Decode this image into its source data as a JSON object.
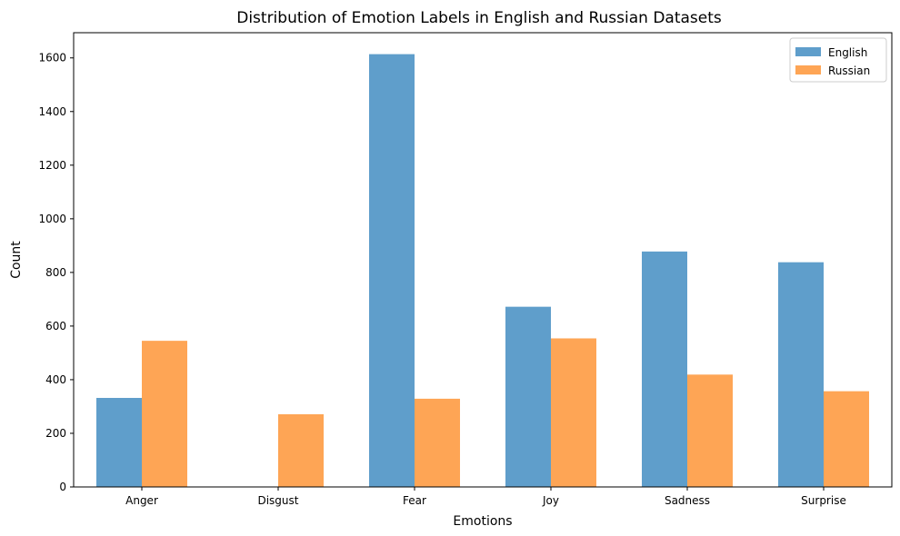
{
  "chart_data": {
    "type": "bar",
    "title": "Distribution of Emotion Labels in English and Russian Datasets",
    "xlabel": "Emotions",
    "ylabel": "Count",
    "categories": [
      "Anger",
      "Disgust",
      "Fear",
      "Joy",
      "Sadness",
      "Surprise"
    ],
    "series": [
      {
        "name": "English",
        "color": "#5f9ecb",
        "values": [
          332,
          0,
          1614,
          672,
          878,
          838
        ]
      },
      {
        "name": "Russian",
        "color": "#fea555",
        "values": [
          545,
          271,
          329,
          554,
          419,
          357
        ]
      }
    ],
    "ylim": [
      0,
      1694
    ],
    "yticks": [
      0,
      200,
      400,
      600,
      800,
      1000,
      1200,
      1400,
      1600
    ],
    "ytick_labels": [
      "0",
      "200",
      "400",
      "600",
      "800",
      "1000",
      "1200",
      "1400",
      "1600"
    ],
    "grid": false,
    "legend_position": "top-right"
  }
}
